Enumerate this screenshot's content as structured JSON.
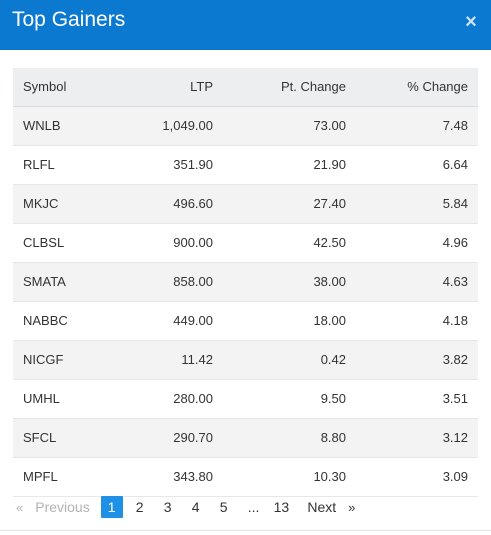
{
  "modal": {
    "title": "Top Gainers",
    "close_symbol": "×"
  },
  "table": {
    "headers": {
      "symbol": "Symbol",
      "ltp": "LTP",
      "pt_change": "Pt. Change",
      "pct_change": "% Change"
    },
    "rows": [
      {
        "symbol": "WNLB",
        "ltp": "1,049.00",
        "pt_change": "73.00",
        "pct_change": "7.48"
      },
      {
        "symbol": "RLFL",
        "ltp": "351.90",
        "pt_change": "21.90",
        "pct_change": "6.64"
      },
      {
        "symbol": "MKJC",
        "ltp": "496.60",
        "pt_change": "27.40",
        "pct_change": "5.84"
      },
      {
        "symbol": "CLBSL",
        "ltp": "900.00",
        "pt_change": "42.50",
        "pct_change": "4.96"
      },
      {
        "symbol": "SMATA",
        "ltp": "858.00",
        "pt_change": "38.00",
        "pct_change": "4.63"
      },
      {
        "symbol": "NABBC",
        "ltp": "449.00",
        "pt_change": "18.00",
        "pct_change": "4.18"
      },
      {
        "symbol": "NICGF",
        "ltp": "11.42",
        "pt_change": "0.42",
        "pct_change": "3.82"
      },
      {
        "symbol": "UMHL",
        "ltp": "280.00",
        "pt_change": "9.50",
        "pct_change": "3.51"
      },
      {
        "symbol": "SFCL",
        "ltp": "290.70",
        "pt_change": "8.80",
        "pct_change": "3.12"
      },
      {
        "symbol": "MPFL",
        "ltp": "343.80",
        "pt_change": "10.30",
        "pct_change": "3.09"
      }
    ]
  },
  "pagination": {
    "prev_arrow": "«",
    "prev_label": "Previous",
    "pages": [
      "1",
      "2",
      "3",
      "4",
      "5"
    ],
    "active_page": "1",
    "ellipsis": "...",
    "last_page": "13",
    "next_label": "Next",
    "next_arrow": "»"
  },
  "colors": {
    "header_bg": "#0b79cf",
    "gain": "#2e8b2e",
    "active_page": "#1e90e6"
  }
}
